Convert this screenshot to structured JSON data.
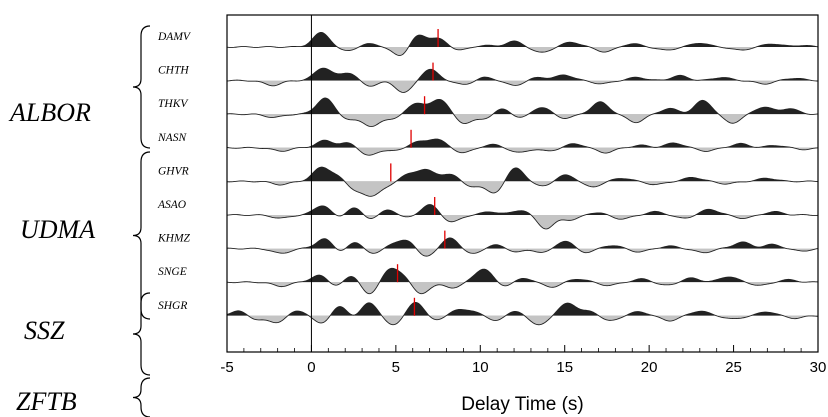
{
  "chart_data": {
    "type": "line",
    "xlabel": "Delay Time (s)",
    "xlim": [
      -5,
      30
    ],
    "xticks": [
      -5,
      0,
      5,
      10,
      15,
      20,
      25,
      30
    ],
    "reference_line_x": 0,
    "fill_positive": "#222222",
    "fill_negative": "#c4c4c4",
    "marker_color": "#e00000",
    "groups": [
      {
        "name": "ALBOR",
        "stations": [
          "DAMV",
          "CHTH",
          "THKV",
          "NASN"
        ]
      },
      {
        "name": "UDMA",
        "stations": [
          "GHVR",
          "ASAO",
          "KHMZ",
          "SNGE"
        ]
      },
      {
        "name": "SSZ",
        "stations": [
          "SHGR"
        ]
      },
      {
        "name": "ZFTB",
        "stations": []
      }
    ],
    "series": [
      {
        "name": "DAMV",
        "marker": 7.5,
        "peaks": [
          [
            0.6,
            0.9
          ],
          [
            2.0,
            -0.25
          ],
          [
            3.5,
            0.2
          ],
          [
            5.3,
            -0.6
          ],
          [
            6.3,
            0.75
          ],
          [
            7.5,
            0.5
          ],
          [
            8.8,
            -0.2
          ],
          [
            10.2,
            0.1
          ],
          [
            12.0,
            0.35
          ],
          [
            13.6,
            -0.35
          ],
          [
            15.4,
            0.3
          ],
          [
            17.4,
            -0.3
          ],
          [
            19.0,
            0.2
          ],
          [
            21.0,
            -0.2
          ],
          [
            23.0,
            0.25
          ],
          [
            25.4,
            -0.2
          ],
          [
            27.3,
            0.2
          ],
          [
            29.0,
            0.1
          ]
        ]
      },
      {
        "name": "CHTH",
        "marker": 7.2,
        "peaks": [
          [
            -2.3,
            -0.3
          ],
          [
            0.7,
            0.8
          ],
          [
            2.2,
            0.5
          ],
          [
            3.4,
            -0.35
          ],
          [
            5.5,
            -0.75
          ],
          [
            7.0,
            0.7
          ],
          [
            9.0,
            -0.25
          ],
          [
            10.3,
            0.2
          ],
          [
            12.0,
            -0.3
          ],
          [
            13.5,
            0.2
          ],
          [
            15.0,
            0.35
          ],
          [
            17.2,
            -0.2
          ],
          [
            19.3,
            0.2
          ],
          [
            21.8,
            0.3
          ],
          [
            24.3,
            0.2
          ],
          [
            26.8,
            -0.2
          ],
          [
            28.6,
            0.15
          ]
        ]
      },
      {
        "name": "THKV",
        "marker": 6.7,
        "peaks": [
          [
            -2.2,
            -0.2
          ],
          [
            0.8,
            1.0
          ],
          [
            2.3,
            -0.35
          ],
          [
            3.6,
            -0.75
          ],
          [
            4.9,
            -0.25
          ],
          [
            6.2,
            0.7
          ],
          [
            7.6,
            0.95
          ],
          [
            9.0,
            -0.55
          ],
          [
            10.2,
            -0.3
          ],
          [
            11.3,
            0.35
          ],
          [
            12.4,
            -0.25
          ],
          [
            13.6,
            0.45
          ],
          [
            15.0,
            -0.25
          ],
          [
            17.1,
            0.75
          ],
          [
            19.2,
            -0.5
          ],
          [
            21.2,
            0.35
          ],
          [
            23.2,
            0.85
          ],
          [
            24.9,
            -0.55
          ],
          [
            26.8,
            0.45
          ],
          [
            28.3,
            0.35
          ]
        ]
      },
      {
        "name": "NASN",
        "marker": 5.9,
        "peaks": [
          [
            -1.8,
            -0.2
          ],
          [
            0.8,
            0.45
          ],
          [
            2.2,
            0.3
          ],
          [
            3.4,
            -0.5
          ],
          [
            5.0,
            -0.2
          ],
          [
            6.2,
            0.35
          ],
          [
            7.4,
            0.55
          ],
          [
            9.0,
            -0.3
          ],
          [
            10.7,
            0.2
          ],
          [
            12.3,
            -0.3
          ],
          [
            14.0,
            -0.2
          ],
          [
            15.6,
            0.25
          ],
          [
            17.4,
            -0.3
          ],
          [
            19.5,
            0.15
          ],
          [
            21.5,
            0.3
          ],
          [
            23.4,
            -0.2
          ],
          [
            25.4,
            0.25
          ],
          [
            27.5,
            0.15
          ],
          [
            29.2,
            -0.1
          ]
        ]
      },
      {
        "name": "GHVR",
        "marker": 4.7,
        "peaks": [
          [
            -1.8,
            -0.2
          ],
          [
            0.6,
            0.85
          ],
          [
            1.6,
            0.3
          ],
          [
            2.5,
            -0.45
          ],
          [
            3.5,
            -0.85
          ],
          [
            4.6,
            -0.3
          ],
          [
            5.6,
            0.45
          ],
          [
            6.8,
            0.75
          ],
          [
            8.3,
            0.5
          ],
          [
            9.3,
            -0.35
          ],
          [
            10.8,
            -0.75
          ],
          [
            12.1,
            0.85
          ],
          [
            13.6,
            -0.3
          ],
          [
            15.1,
            0.4
          ],
          [
            16.6,
            -0.35
          ],
          [
            18.4,
            0.2
          ],
          [
            20.4,
            -0.2
          ],
          [
            22.6,
            0.25
          ],
          [
            24.6,
            -0.15
          ],
          [
            27.0,
            0.2
          ]
        ]
      },
      {
        "name": "ASAO",
        "marker": 7.3,
        "peaks": [
          [
            -1.8,
            -0.2
          ],
          [
            0.7,
            0.65
          ],
          [
            1.6,
            -0.3
          ],
          [
            2.5,
            0.55
          ],
          [
            3.4,
            -0.3
          ],
          [
            4.6,
            0.35
          ],
          [
            5.6,
            -0.2
          ],
          [
            7.0,
            0.65
          ],
          [
            8.3,
            -0.45
          ],
          [
            10.6,
            0.2
          ],
          [
            12.4,
            0.3
          ],
          [
            13.9,
            -0.85
          ],
          [
            15.4,
            -0.3
          ],
          [
            16.8,
            0.15
          ],
          [
            18.4,
            -0.25
          ],
          [
            20.4,
            0.2
          ],
          [
            22.0,
            -0.2
          ],
          [
            23.6,
            0.35
          ],
          [
            25.6,
            -0.2
          ],
          [
            27.4,
            0.2
          ]
        ]
      },
      {
        "name": "KHMZ",
        "marker": 7.9,
        "peaks": [
          [
            -1.8,
            -0.3
          ],
          [
            0.8,
            0.65
          ],
          [
            1.7,
            -0.3
          ],
          [
            2.6,
            0.45
          ],
          [
            3.7,
            -0.4
          ],
          [
            4.7,
            0.3
          ],
          [
            5.8,
            0.55
          ],
          [
            6.7,
            -0.6
          ],
          [
            8.2,
            0.65
          ],
          [
            9.6,
            -0.35
          ],
          [
            10.8,
            0.25
          ],
          [
            12.2,
            -0.2
          ],
          [
            13.8,
            -0.25
          ],
          [
            15.0,
            0.5
          ],
          [
            16.2,
            -0.25
          ],
          [
            17.8,
            0.2
          ],
          [
            19.4,
            -0.2
          ],
          [
            21.2,
            0.15
          ],
          [
            23.2,
            -0.25
          ],
          [
            25.5,
            0.4
          ],
          [
            27.3,
            0.25
          ],
          [
            29.0,
            -0.15
          ]
        ]
      },
      {
        "name": "SNGE",
        "marker": 5.1,
        "peaks": [
          [
            -1.8,
            -0.25
          ],
          [
            0.5,
            0.45
          ],
          [
            1.5,
            -0.3
          ],
          [
            2.5,
            0.55
          ],
          [
            3.4,
            -0.9
          ],
          [
            4.6,
            0.8
          ],
          [
            5.6,
            0.45
          ],
          [
            6.4,
            -0.85
          ],
          [
            8.3,
            -0.35
          ],
          [
            10.2,
            0.85
          ],
          [
            11.4,
            -0.25
          ],
          [
            12.6,
            0.25
          ],
          [
            14.2,
            -0.3
          ],
          [
            15.8,
            0.2
          ],
          [
            17.6,
            -0.2
          ],
          [
            19.6,
            0.2
          ],
          [
            21.0,
            -0.2
          ],
          [
            22.5,
            0.25
          ],
          [
            24.7,
            0.35
          ],
          [
            26.6,
            -0.2
          ],
          [
            28.2,
            0.15
          ]
        ]
      },
      {
        "name": "SHGR",
        "marker": 6.1,
        "peaks": [
          [
            -4.3,
            0.3
          ],
          [
            -3.2,
            -0.25
          ],
          [
            -2.0,
            -0.4
          ],
          [
            -0.8,
            0.35
          ],
          [
            0.6,
            -0.5
          ],
          [
            1.7,
            0.65
          ],
          [
            2.6,
            -0.3
          ],
          [
            3.4,
            0.9
          ],
          [
            4.8,
            -0.6
          ],
          [
            6.2,
            0.85
          ],
          [
            7.4,
            -0.35
          ],
          [
            8.5,
            0.35
          ],
          [
            9.6,
            0.3
          ],
          [
            10.8,
            -0.3
          ],
          [
            12.2,
            0.3
          ],
          [
            13.4,
            -0.6
          ],
          [
            15.2,
            0.8
          ],
          [
            16.6,
            0.3
          ],
          [
            17.6,
            -0.35
          ],
          [
            19.4,
            0.25
          ],
          [
            21.2,
            -0.3
          ],
          [
            23.0,
            0.3
          ],
          [
            25.0,
            -0.2
          ],
          [
            27.0,
            0.25
          ],
          [
            28.6,
            -0.15
          ]
        ]
      }
    ]
  }
}
